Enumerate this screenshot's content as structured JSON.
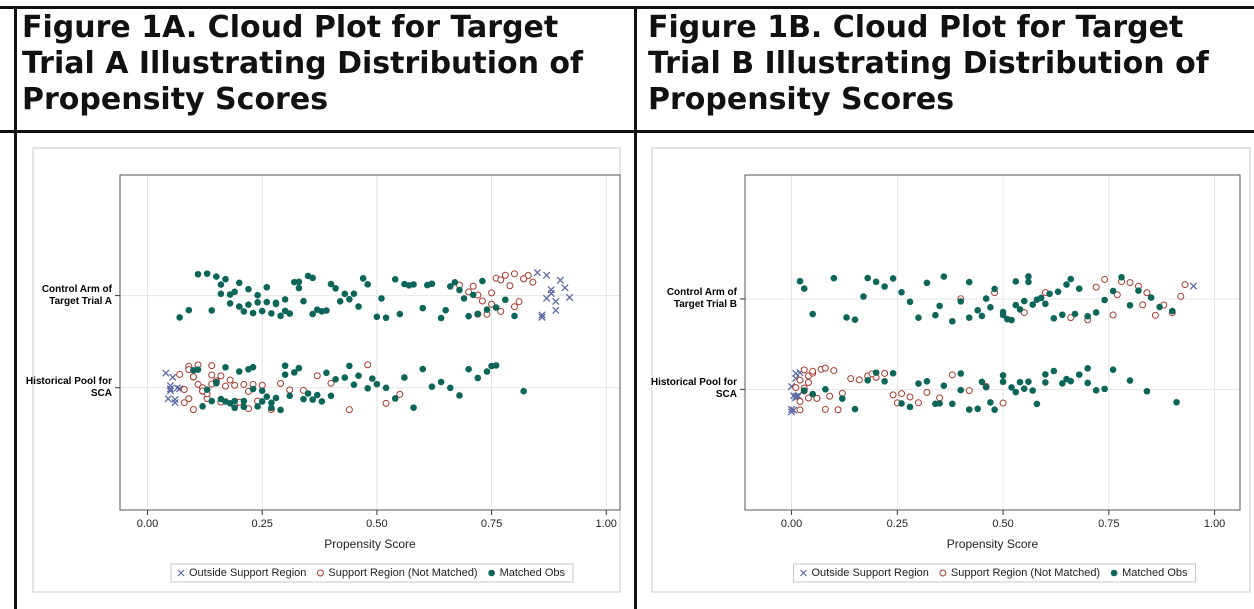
{
  "chart_data": [
    {
      "type": "scatter",
      "title": "Figure 1A. Cloud Plot for Target Trial A Illustrating Distribution of Propensity Scores",
      "xlabel": "Propensity Score",
      "categories": [
        "Control Arm of Target Trial A",
        "Historical Pool for SCA"
      ],
      "xlim": [
        -0.06,
        1.03
      ],
      "xticks": [
        {
          "value": 0,
          "label": "0.00"
        },
        {
          "value": 0.25,
          "label": "0.25"
        },
        {
          "value": 0.5,
          "label": "0.50"
        },
        {
          "value": 0.75,
          "label": "0.75"
        },
        {
          "value": 1,
          "label": "1.00"
        }
      ],
      "grid": true,
      "legend": "bottom",
      "series": [
        {
          "name": "Outside Support Region",
          "color": "#5b6aa5",
          "marker": "x",
          "values": [
            [
              0.85,
              0.86,
              0.87,
              0.87,
              0.88,
              0.88,
              0.89,
              0.9,
              0.91,
              0.92,
              0.86,
              0.89
            ],
            [
              0.04,
              0.045,
              0.05,
              0.05,
              0.055,
              0.06,
              0.06,
              0.065,
              0.07,
              0.05
            ]
          ]
        },
        {
          "name": "Support Region (Not Matched)",
          "color": "#a8392b",
          "marker": "open-circle",
          "values": [
            [
              0.68,
              0.7,
              0.71,
              0.72,
              0.73,
              0.74,
              0.75,
              0.76,
              0.77,
              0.78,
              0.79,
              0.8,
              0.81,
              0.82,
              0.83,
              0.84,
              0.72,
              0.75,
              0.77,
              0.8,
              0.82
            ],
            [
              0.07,
              0.08,
              0.08,
              0.09,
              0.09,
              0.1,
              0.1,
              0.11,
              0.11,
              0.12,
              0.12,
              0.13,
              0.13,
              0.14,
              0.14,
              0.15,
              0.16,
              0.17,
              0.18,
              0.19,
              0.2,
              0.21,
              0.22,
              0.23,
              0.24,
              0.25,
              0.27,
              0.29,
              0.31,
              0.34,
              0.37,
              0.4,
              0.44,
              0.48,
              0.52,
              0.55,
              0.09,
              0.1,
              0.12,
              0.14,
              0.16,
              0.19,
              0.22
            ]
          ]
        },
        {
          "name": "Matched Obs",
          "color": "#0b6659",
          "marker": "circle",
          "values": [
            [
              0.07,
              0.09,
              0.11,
              0.13,
              0.14,
              0.15,
              0.16,
              0.17,
              0.18,
              0.19,
              0.2,
              0.21,
              0.22,
              0.23,
              0.24,
              0.25,
              0.26,
              0.27,
              0.28,
              0.29,
              0.3,
              0.31,
              0.32,
              0.33,
              0.34,
              0.35,
              0.36,
              0.37,
              0.38,
              0.4,
              0.41,
              0.42,
              0.44,
              0.45,
              0.47,
              0.48,
              0.5,
              0.52,
              0.54,
              0.55,
              0.57,
              0.58,
              0.6,
              0.62,
              0.64,
              0.65,
              0.67,
              0.68,
              0.7,
              0.71,
              0.73,
              0.74,
              0.76,
              0.78,
              0.8,
              0.16,
              0.18,
              0.2,
              0.22,
              0.24,
              0.26,
              0.28,
              0.3,
              0.33,
              0.36,
              0.39,
              0.43,
              0.46,
              0.51,
              0.56,
              0.61,
              0.66,
              0.69,
              0.72
            ],
            [
              0.1,
              0.11,
              0.12,
              0.13,
              0.14,
              0.15,
              0.16,
              0.17,
              0.18,
              0.19,
              0.2,
              0.21,
              0.22,
              0.23,
              0.24,
              0.25,
              0.26,
              0.27,
              0.28,
              0.29,
              0.3,
              0.31,
              0.32,
              0.33,
              0.35,
              0.36,
              0.38,
              0.39,
              0.41,
              0.43,
              0.44,
              0.46,
              0.48,
              0.5,
              0.52,
              0.54,
              0.56,
              0.58,
              0.6,
              0.62,
              0.64,
              0.66,
              0.68,
              0.7,
              0.72,
              0.74,
              0.75,
              0.76,
              0.82,
              0.15,
              0.17,
              0.19,
              0.21,
              0.23,
              0.25,
              0.27,
              0.3,
              0.34,
              0.37,
              0.4,
              0.45,
              0.49
            ]
          ]
        }
      ]
    },
    {
      "type": "scatter",
      "title": "Figure 1B. Cloud Plot for Target Trial B Illustrating Distribution of Propensity Scores",
      "xlabel": "Propensity Score",
      "categories": [
        "Control Arm of Target Trial B",
        "Historical Pool for SCA"
      ],
      "xlim": [
        -0.11,
        1.06
      ],
      "xticks": [
        {
          "value": 0,
          "label": "0.00"
        },
        {
          "value": 0.25,
          "label": "0.25"
        },
        {
          "value": 0.5,
          "label": "0.50"
        },
        {
          "value": 0.75,
          "label": "0.75"
        },
        {
          "value": 1,
          "label": "1.00"
        }
      ],
      "grid": true,
      "legend": "bottom",
      "series": [
        {
          "name": "Outside Support Region",
          "color": "#5b6aa5",
          "marker": "x",
          "values": [
            [
              0.95
            ],
            [
              0.0,
              0.0,
              0.005,
              0.005,
              0.01,
              0.01,
              0.01,
              0.015,
              0.015,
              0.02,
              0.0,
              0.01
            ]
          ]
        },
        {
          "name": "Support Region (Not Matched)",
          "color": "#a8392b",
          "marker": "open-circle",
          "values": [
            [
              0.4,
              0.48,
              0.55,
              0.6,
              0.66,
              0.7,
              0.72,
              0.74,
              0.76,
              0.78,
              0.8,
              0.82,
              0.84,
              0.86,
              0.88,
              0.9,
              0.92,
              0.93,
              0.77,
              0.83
            ],
            [
              0.01,
              0.02,
              0.02,
              0.03,
              0.03,
              0.04,
              0.04,
              0.05,
              0.05,
              0.06,
              0.07,
              0.08,
              0.09,
              0.1,
              0.11,
              0.12,
              0.14,
              0.16,
              0.18,
              0.2,
              0.22,
              0.24,
              0.26,
              0.28,
              0.3,
              0.32,
              0.35,
              0.38,
              0.42,
              0.46,
              0.5,
              0.02,
              0.03,
              0.04,
              0.06,
              0.08,
              0.19,
              0.25
            ]
          ]
        },
        {
          "name": "Matched Obs",
          "color": "#0b6659",
          "marker": "circle",
          "values": [
            [
              0.02,
              0.03,
              0.05,
              0.1,
              0.13,
              0.15,
              0.17,
              0.18,
              0.2,
              0.22,
              0.24,
              0.26,
              0.28,
              0.3,
              0.32,
              0.34,
              0.36,
              0.38,
              0.4,
              0.42,
              0.44,
              0.45,
              0.46,
              0.48,
              0.5,
              0.51,
              0.52,
              0.53,
              0.54,
              0.55,
              0.56,
              0.57,
              0.58,
              0.6,
              0.61,
              0.62,
              0.64,
              0.65,
              0.66,
              0.68,
              0.7,
              0.72,
              0.74,
              0.76,
              0.78,
              0.8,
              0.82,
              0.85,
              0.87,
              0.9,
              0.35,
              0.42,
              0.47,
              0.5,
              0.53,
              0.56,
              0.59,
              0.63,
              0.67
            ],
            [
              0.03,
              0.05,
              0.08,
              0.12,
              0.15,
              0.18,
              0.2,
              0.22,
              0.24,
              0.26,
              0.28,
              0.3,
              0.32,
              0.34,
              0.36,
              0.38,
              0.4,
              0.42,
              0.44,
              0.46,
              0.48,
              0.5,
              0.52,
              0.54,
              0.56,
              0.58,
              0.6,
              0.62,
              0.64,
              0.66,
              0.68,
              0.7,
              0.72,
              0.74,
              0.76,
              0.8,
              0.84,
              0.91,
              0.45,
              0.5,
              0.55,
              0.6,
              0.65,
              0.7,
              0.35,
              0.4,
              0.47,
              0.53,
              0.57
            ]
          ]
        }
      ]
    }
  ]
}
